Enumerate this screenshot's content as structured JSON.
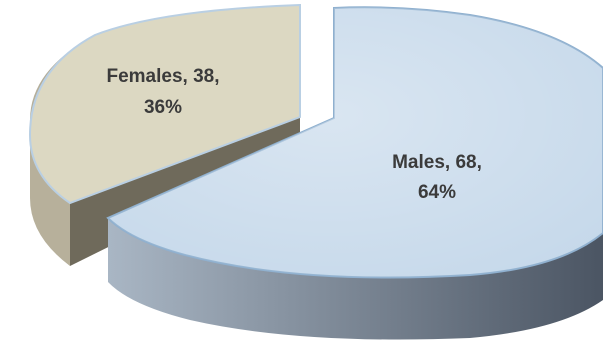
{
  "chart_data": {
    "type": "pie",
    "style": "3d-exploded",
    "title": "",
    "slices": [
      {
        "label": "Males",
        "value": 68,
        "percent": 64,
        "label_line1": "Males, 68,",
        "label_line2": "64%",
        "color_top": "#c5d8ea",
        "color_side_light": "#a9b6c4",
        "color_side_dark": "#4b5563",
        "color_edge": "#8fb0cf"
      },
      {
        "label": "Females",
        "value": 38,
        "percent": 36,
        "label_line1": "Females, 38,",
        "label_line2": "36%",
        "color_top": "#dcd8c2",
        "color_side_light": "#b7b09b",
        "color_side_dark": "#6f6a5b",
        "color_edge": "#b9cfe3"
      }
    ]
  }
}
